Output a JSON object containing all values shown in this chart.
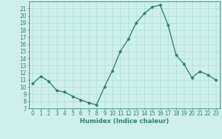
{
  "x": [
    0,
    1,
    2,
    3,
    4,
    5,
    6,
    7,
    8,
    9,
    10,
    11,
    12,
    13,
    14,
    15,
    16,
    17,
    18,
    19,
    20,
    21,
    22,
    23
  ],
  "y": [
    10.5,
    11.5,
    10.8,
    9.5,
    9.3,
    8.7,
    8.2,
    7.8,
    7.5,
    10.0,
    12.3,
    15.0,
    16.7,
    19.0,
    20.3,
    21.2,
    21.5,
    18.7,
    14.5,
    13.2,
    11.3,
    12.2,
    11.7,
    11.0
  ],
  "xlim": [
    -0.5,
    23.5
  ],
  "ylim": [
    7,
    22
  ],
  "yticks": [
    7,
    8,
    9,
    10,
    11,
    12,
    13,
    14,
    15,
    16,
    17,
    18,
    19,
    20,
    21
  ],
  "xticks": [
    0,
    1,
    2,
    3,
    4,
    5,
    6,
    7,
    8,
    9,
    10,
    11,
    12,
    13,
    14,
    15,
    16,
    17,
    18,
    19,
    20,
    21,
    22,
    23
  ],
  "xlabel": "Humidex (Indice chaleur)",
  "line_color": "#2e7d6e",
  "marker": "o",
  "marker_size": 2,
  "bg_color": "#cff0ea",
  "grid_color": "#a8ddd6",
  "axis_color": "#2e7d6e",
  "tick_fontsize": 5.5,
  "label_fontsize": 6.5,
  "line_width": 1.0
}
